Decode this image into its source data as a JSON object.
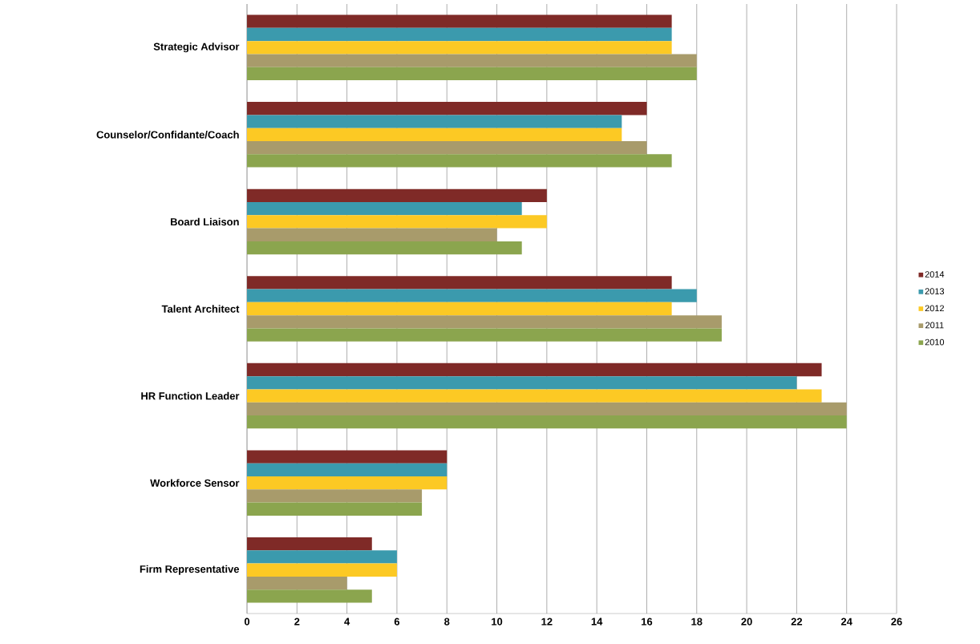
{
  "chart_data": {
    "type": "bar",
    "orientation": "horizontal",
    "categories": [
      "Strategic Advisor",
      "Counselor/Confidante/Coach",
      "Board Liaison",
      "Talent Architect",
      "HR Function Leader",
      "Workforce Sensor",
      "Firm Representative"
    ],
    "series": [
      {
        "name": "2014",
        "color": "#7f2a27",
        "values": [
          17,
          16,
          12,
          17,
          23,
          8,
          5
        ]
      },
      {
        "name": "2013",
        "color": "#3b9aad",
        "values": [
          17,
          15,
          11,
          18,
          22,
          8,
          6
        ]
      },
      {
        "name": "2012",
        "color": "#fcc924",
        "values": [
          17,
          15,
          12,
          17,
          23,
          8,
          6
        ]
      },
      {
        "name": "2011",
        "color": "#a89b6b",
        "values": [
          18,
          16,
          10,
          19,
          24,
          7,
          4
        ]
      },
      {
        "name": "2010",
        "color": "#8ba54e",
        "values": [
          18,
          17,
          11,
          19,
          24,
          7,
          5
        ]
      }
    ],
    "xlim": [
      0,
      26
    ],
    "xticks": [
      0,
      2,
      4,
      6,
      8,
      10,
      12,
      14,
      16,
      18,
      20,
      22,
      24,
      26
    ],
    "grid": "x",
    "legend": "right"
  }
}
